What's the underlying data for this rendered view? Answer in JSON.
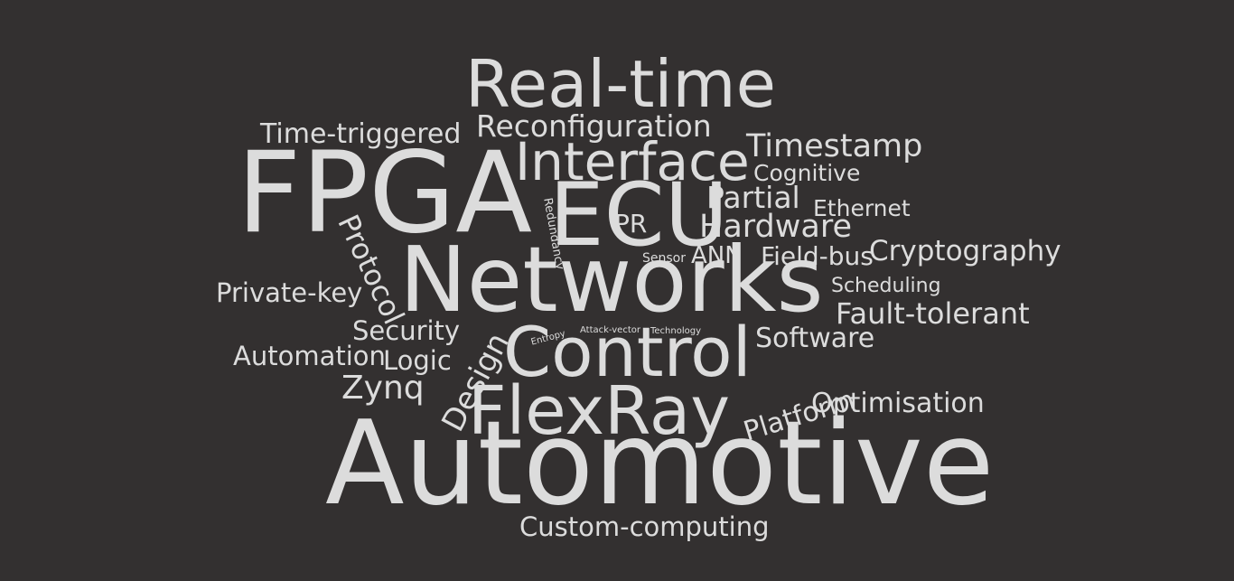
{
  "colors": {
    "background": "#333030",
    "text": "#dcdcdc"
  },
  "words": [
    "Real-time",
    "Time-triggered",
    "Reconfiguration",
    "Timestamp",
    "FPGA",
    "Interface",
    "Cognitive",
    "ECU",
    "Partial",
    "Ethernet",
    "Redundancy",
    "PR",
    "Hardware",
    "Protocol",
    "Networks",
    "Sensor",
    "ANN",
    "Field-bus",
    "Cryptography",
    "Private-key",
    "Scheduling",
    "Fault-tolerant",
    "Security",
    "Attack-vector",
    "Technology",
    "Entropy",
    "Control",
    "Software",
    "Automation",
    "Logic",
    "Design",
    "Zynq",
    "Platform",
    "Optimisation",
    "FlexRay",
    "Automotive",
    "Custom-computing"
  ]
}
